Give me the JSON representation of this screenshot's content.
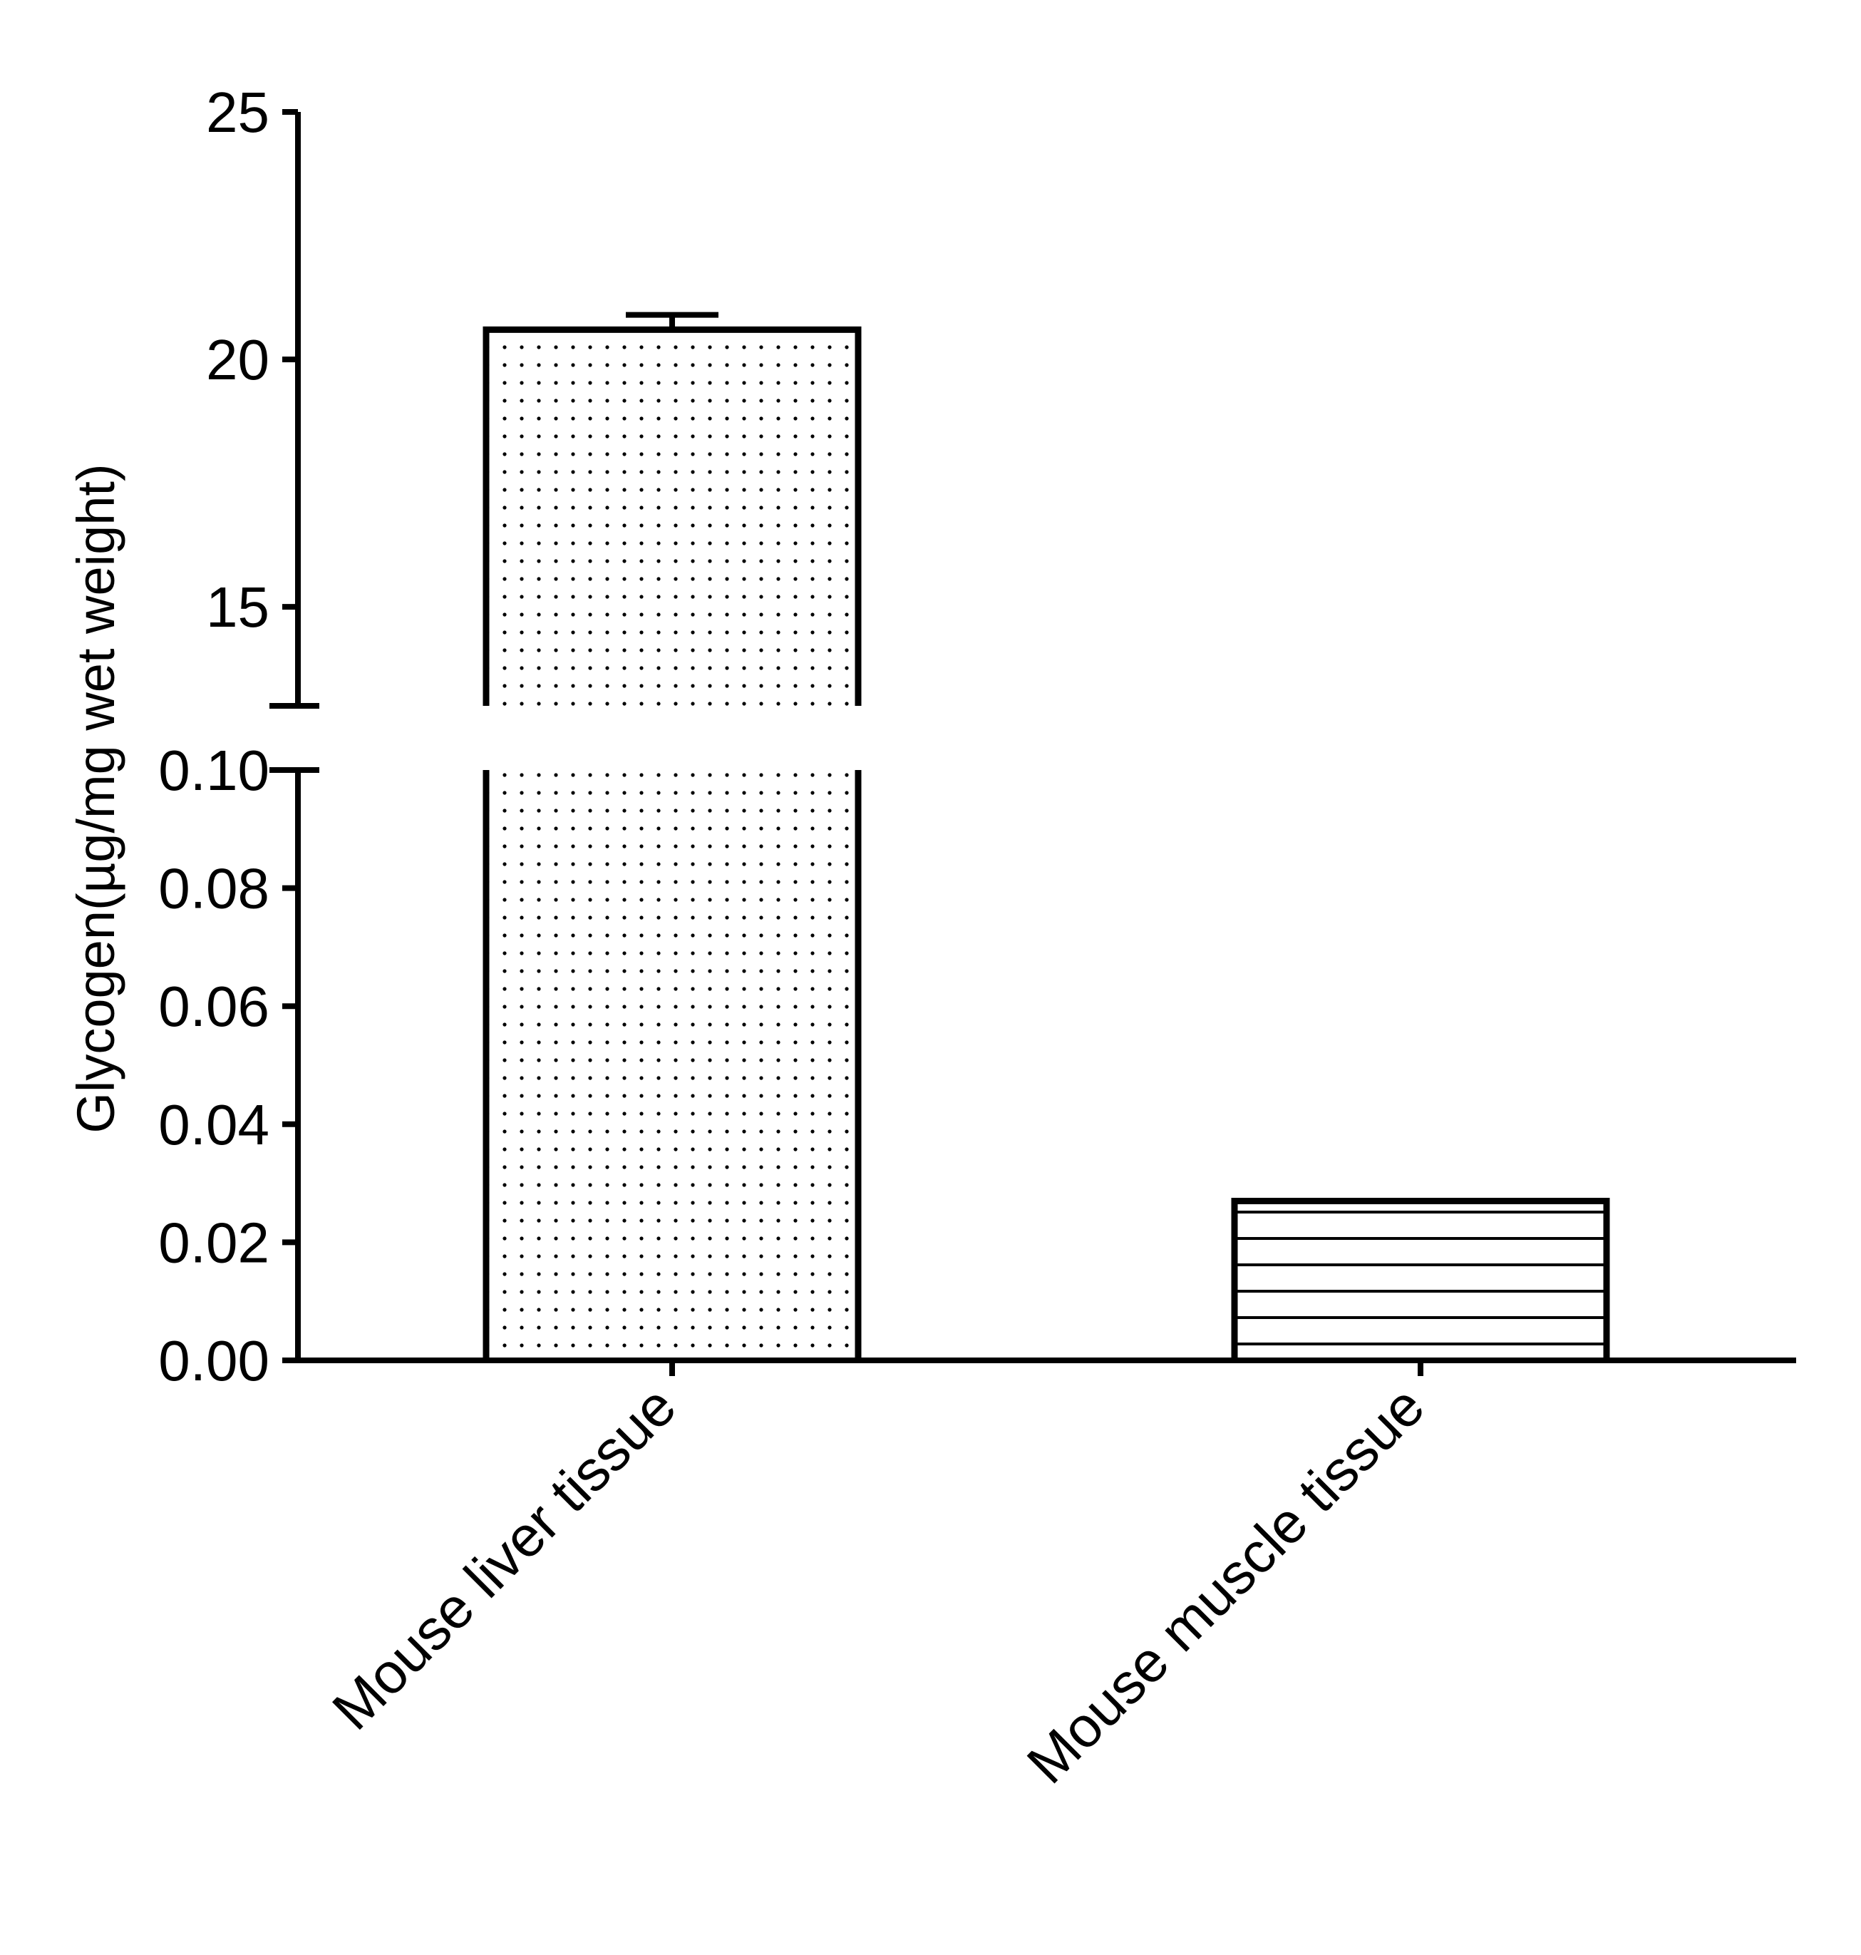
{
  "chart_data": {
    "type": "bar",
    "xlabel": "",
    "ylabel": "Glycogen(µg/mg wet weight)",
    "broken_axis": true,
    "lower_segment": {
      "ylim": [
        0,
        0.1
      ],
      "ticks": [
        0.0,
        0.02,
        0.04,
        0.06,
        0.08,
        0.1
      ],
      "tick_labels": [
        "0.00",
        "0.02",
        "0.04",
        "0.06",
        "0.08",
        "0.10"
      ]
    },
    "upper_segment": {
      "ylim": [
        13,
        25
      ],
      "ticks": [
        15,
        20,
        25
      ],
      "tick_labels": [
        "15",
        "20",
        "25"
      ]
    },
    "categories": [
      "Mouse liver tissue",
      "Mouse muscle tissue"
    ],
    "values": [
      20.6,
      0.027
    ],
    "error": [
      0.3,
      0
    ],
    "patterns": [
      "dots",
      "horizontal-lines"
    ],
    "grid": false,
    "legend": "none"
  }
}
